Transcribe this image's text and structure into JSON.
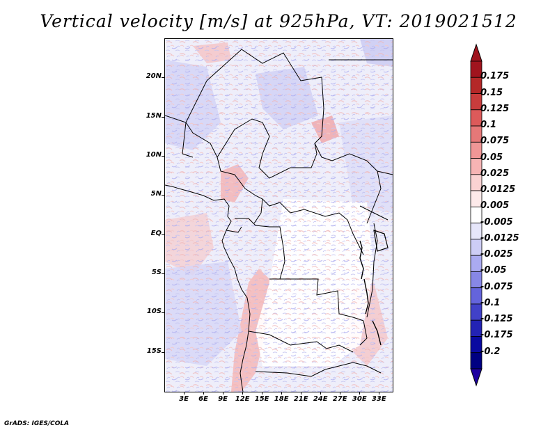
{
  "title": "Vertical velocity [m/s] at 925hPa, VT: 2019021512",
  "credit": "GrADS: IGES/COLA",
  "map": {
    "region": "Central Africa",
    "lat_labels": [
      "20N",
      "15N",
      "10N",
      "5N",
      "EQ",
      "5S",
      "10S",
      "15S"
    ],
    "lon_labels": [
      "3E",
      "6E",
      "9E",
      "12E",
      "15E",
      "18E",
      "21E",
      "24E",
      "27E",
      "30E",
      "33E"
    ],
    "lat_range": [
      -20,
      25
    ],
    "lon_range": [
      0,
      35
    ]
  },
  "colorbar": {
    "labels": [
      "0.175",
      "0.15",
      "0.125",
      "0.1",
      "0.075",
      "0.05",
      "0.025",
      "0.0125",
      "0.005",
      "-0.005",
      "-0.0125",
      "-0.025",
      "-0.05",
      "-0.075",
      "-0.1",
      "-0.125",
      "-0.175",
      "-0.2"
    ],
    "colors": [
      "#a0141e",
      "#b42828",
      "#c83c3c",
      "#dc5a5a",
      "#e67878",
      "#f09696",
      "#f6b4b4",
      "#fad2d2",
      "#fdeaea",
      "#ffffff",
      "#e6e6fa",
      "#cdcdf5",
      "#aaaaf0",
      "#8787e6",
      "#6464dc",
      "#4141c8",
      "#2323b4",
      "#0a0aa0",
      "#000082"
    ],
    "top_arrow_color": "#a0141e",
    "bottom_arrow_color": "#1e00a0"
  }
}
